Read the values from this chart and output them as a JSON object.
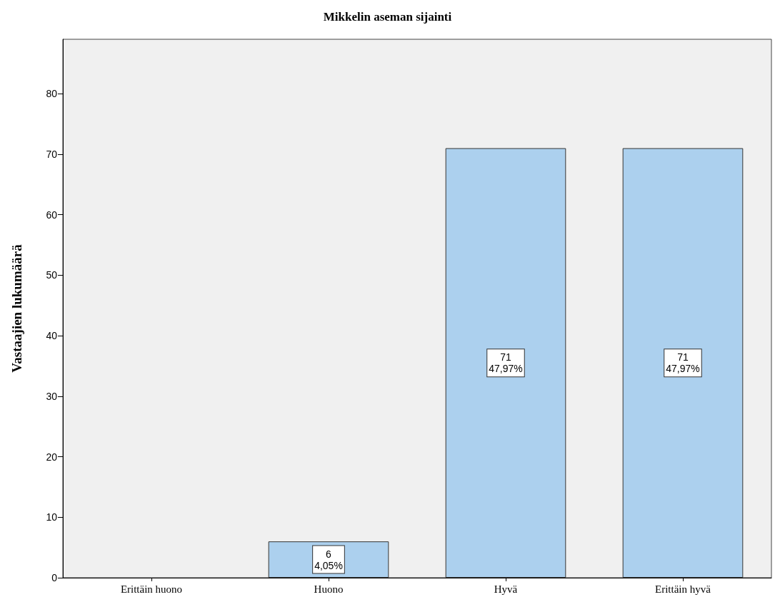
{
  "chart_data": {
    "type": "bar",
    "title": "Mikkelin aseman sijainti",
    "ylabel": "Vastaajien lukumäärä",
    "categories": [
      "Erittäin huono",
      "Huono",
      "Hyvä",
      "Erittäin hyvä"
    ],
    "values": [
      0,
      6,
      71,
      71
    ],
    "color": "#acd0ee",
    "value_labels": [
      null,
      "6\n4,05%",
      "71\n47,97%",
      "71\n47,97%"
    ],
    "ylim": [
      0,
      89
    ],
    "yticks": [
      0,
      10,
      20,
      30,
      40,
      50,
      60,
      70,
      80
    ],
    "grid": false
  }
}
